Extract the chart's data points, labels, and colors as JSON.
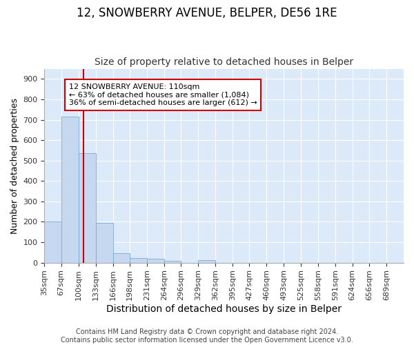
{
  "title": "12, SNOWBERRY AVENUE, BELPER, DE56 1RE",
  "subtitle": "Size of property relative to detached houses in Belper",
  "xlabel": "Distribution of detached houses by size in Belper",
  "ylabel": "Number of detached properties",
  "bins": [
    "35sqm",
    "67sqm",
    "100sqm",
    "133sqm",
    "166sqm",
    "198sqm",
    "231sqm",
    "264sqm",
    "296sqm",
    "329sqm",
    "362sqm",
    "395sqm",
    "427sqm",
    "460sqm",
    "493sqm",
    "525sqm",
    "558sqm",
    "591sqm",
    "624sqm",
    "656sqm",
    "689sqm"
  ],
  "bin_edges": [
    35,
    67,
    100,
    133,
    166,
    198,
    231,
    264,
    296,
    329,
    362,
    395,
    427,
    460,
    493,
    525,
    558,
    591,
    624,
    656,
    689
  ],
  "bar_heights": [
    200,
    715,
    535,
    195,
    45,
    22,
    20,
    10,
    0,
    12,
    0,
    0,
    0,
    0,
    0,
    0,
    0,
    0,
    0,
    0
  ],
  "bar_color": "#c5d8f0",
  "bar_edge_color": "#7aaad4",
  "bg_color": "#dce9f8",
  "grid_color": "#ffffff",
  "vline_x": 110,
  "vline_color": "#cc0000",
  "annotation_text": "12 SNOWBERRY AVENUE: 110sqm\n← 63% of detached houses are smaller (1,084)\n36% of semi-detached houses are larger (612) →",
  "annotation_box_color": "#ffffff",
  "annotation_box_edge": "#cc0000",
  "footnote": "Contains HM Land Registry data © Crown copyright and database right 2024.\nContains public sector information licensed under the Open Government Licence v3.0.",
  "ylim": [
    0,
    950
  ],
  "yticks": [
    0,
    100,
    200,
    300,
    400,
    500,
    600,
    700,
    800,
    900
  ],
  "title_fontsize": 12,
  "subtitle_fontsize": 10,
  "xlabel_fontsize": 10,
  "ylabel_fontsize": 9,
  "tick_fontsize": 8,
  "annotation_fontsize": 8,
  "footnote_fontsize": 7
}
